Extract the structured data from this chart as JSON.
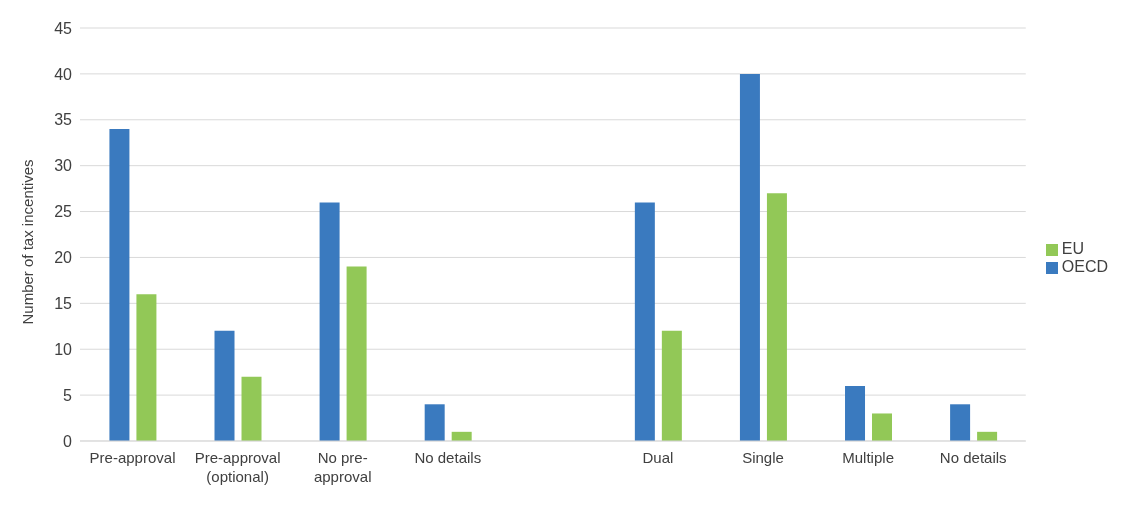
{
  "chart_data": {
    "type": "bar",
    "ylabel": "Number of tax incentives",
    "categories": [
      "Pre-approval",
      "Pre-approval (optional)",
      "No pre-approval",
      "No details",
      null,
      "Dual",
      "Single",
      "Multiple",
      "No details"
    ],
    "series": [
      {
        "name": "OECD",
        "color": "#3a7abf",
        "values": [
          34,
          12,
          26,
          4,
          null,
          26,
          40,
          6,
          4
        ]
      },
      {
        "name": "EU",
        "color": "#92c857",
        "values": [
          16,
          7,
          19,
          1,
          null,
          12,
          27,
          3,
          1
        ]
      }
    ],
    "ylim": [
      0,
      45
    ],
    "yticks": [
      0,
      5,
      10,
      15,
      20,
      25,
      30,
      35,
      40,
      45
    ],
    "grid": "y",
    "legend": "right"
  }
}
